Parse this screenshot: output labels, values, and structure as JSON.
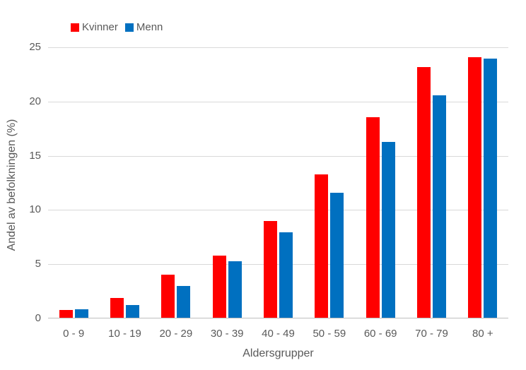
{
  "chart_data": {
    "type": "bar",
    "title": "",
    "categories": [
      "0 - 9",
      "10 - 19",
      "20 - 29",
      "30 - 39",
      "40 - 49",
      "50 - 59",
      "60 - 69",
      "70 - 79",
      "80 +"
    ],
    "series": [
      {
        "name": "Kvinner",
        "color": "#FF0000",
        "values": [
          0.7,
          1.8,
          4.0,
          5.7,
          8.9,
          13.2,
          18.5,
          23.1,
          24.0
        ]
      },
      {
        "name": "Menn",
        "color": "#0070C0",
        "values": [
          0.8,
          1.2,
          2.9,
          5.2,
          7.9,
          11.5,
          16.2,
          20.5,
          23.9
        ]
      }
    ],
    "xlabel": "Aldersgrupper",
    "ylabel": "Andel av befolkningen (%)",
    "ylim": [
      0,
      25
    ],
    "yticks": [
      0,
      5,
      10,
      15,
      20,
      25
    ],
    "grid": true,
    "legend_position": "top",
    "colors": {
      "background": "#FFFFFF",
      "text": "#595959",
      "gridline": "#D9D9D9",
      "axis_line": "#BFBFBF"
    }
  }
}
